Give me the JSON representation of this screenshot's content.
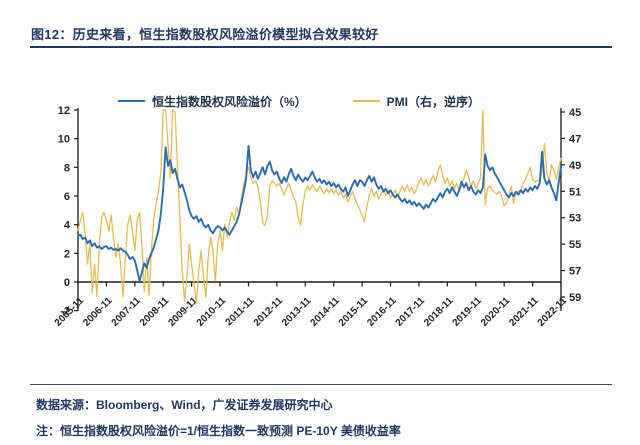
{
  "figure": {
    "title": "图12：历史来看，恒生指数股权风险溢价模型拟合效果较好",
    "source_line": "数据来源：Bloomberg、Wind，广发证券发展研究中心",
    "note_line": "注：恒生指数股权风险溢价=1/恒生指数一致预测 PE-10Y 美债收益率"
  },
  "colors": {
    "accent_navy": "#1f3864",
    "erp_blue": "#2b6cab",
    "pmi_yellow": "#e2bd56",
    "axis": "#1a1a1a",
    "tick_label": "#262626"
  },
  "chart_data": {
    "type": "line",
    "title": "",
    "x_start": "2005-11",
    "frequency": "monthly",
    "x_tick_labels": [
      "2005-11",
      "2006-11",
      "2007-11",
      "2008-11",
      "2009-11",
      "2010-11",
      "2011-11",
      "2012-11",
      "2013-11",
      "2014-11",
      "2015-11",
      "2016-11",
      "2017-11",
      "2018-11",
      "2019-11",
      "2020-11",
      "2021-11",
      "2022-11"
    ],
    "left_axis": {
      "min": -2,
      "max": 12,
      "ticks": [
        12,
        10,
        8,
        6,
        4,
        2,
        0,
        -2
      ]
    },
    "right_axis": {
      "min": 45,
      "max": 59,
      "ticks": [
        45,
        47,
        49,
        51,
        53,
        55,
        57,
        59
      ],
      "inverted": true
    },
    "grid": false,
    "legend_position": "top",
    "series": [
      {
        "name": "恒生指数股权风险溢价（%）",
        "axis": "left",
        "color_key": "erp_blue",
        "values": [
          3.2,
          3.3,
          3.0,
          3.1,
          2.7,
          2.9,
          2.5,
          2.7,
          2.4,
          2.5,
          2.3,
          2.45,
          2.5,
          2.3,
          2.4,
          2.25,
          2.3,
          2.2,
          2.35,
          2.2,
          2.1,
          1.9,
          1.6,
          1.75,
          1.5,
          0.8,
          0.05,
          0.7,
          1.3,
          1.0,
          1.6,
          2.0,
          2.4,
          3.0,
          3.6,
          4.8,
          6.5,
          9.4,
          8.1,
          8.5,
          7.6,
          7.9,
          7.2,
          6.6,
          6.8,
          6.3,
          5.7,
          5.0,
          4.6,
          4.4,
          4.6,
          4.2,
          4.4,
          4.0,
          3.8,
          4.0,
          3.6,
          3.4,
          3.7,
          3.9,
          3.8,
          3.6,
          3.8,
          3.5,
          3.3,
          3.6,
          3.9,
          4.2,
          4.7,
          5.5,
          6.3,
          7.2,
          9.5,
          7.8,
          7.3,
          7.7,
          7.2,
          7.6,
          8.0,
          7.5,
          8.1,
          8.4,
          7.8,
          7.5,
          7.7,
          7.2,
          6.9,
          7.3,
          7.0,
          7.5,
          7.9,
          7.4,
          7.1,
          7.5,
          7.2,
          7.0,
          7.3,
          7.1,
          7.4,
          7.7,
          7.3,
          7.0,
          7.2,
          6.9,
          7.1,
          6.8,
          7.0,
          6.7,
          6.9,
          6.6,
          6.8,
          6.5,
          6.3,
          6.6,
          6.0,
          6.4,
          6.8,
          7.1,
          6.7,
          7.1,
          7.0,
          6.7,
          7.1,
          7.4,
          7.0,
          7.3,
          6.8,
          6.5,
          6.7,
          6.3,
          6.5,
          6.2,
          6.4,
          6.1,
          5.9,
          6.1,
          5.8,
          5.6,
          5.8,
          5.5,
          5.7,
          5.4,
          5.6,
          5.3,
          5.5,
          5.3,
          5.1,
          5.4,
          5.2,
          5.5,
          5.8,
          5.6,
          5.9,
          6.2,
          5.9,
          6.3,
          6.5,
          6.2,
          6.6,
          6.3,
          6.0,
          6.4,
          7.0,
          6.6,
          6.9,
          6.4,
          6.7,
          6.3,
          6.1,
          6.4,
          6.2,
          6.6,
          8.9,
          8.1,
          7.8,
          8.0,
          7.6,
          7.3,
          7.0,
          6.7,
          6.4,
          6.1,
          5.9,
          6.2,
          6.0,
          6.3,
          6.1,
          6.4,
          6.2,
          6.5,
          6.3,
          6.6,
          6.4,
          6.7,
          6.5,
          6.9,
          9.1,
          7.2,
          6.8,
          7.1,
          6.6,
          6.2,
          5.7,
          6.9,
          8.1
        ]
      },
      {
        "name": "PMI（右，逆序）",
        "axis": "right",
        "color_key": "pmi_yellow",
        "values": [
          54.0,
          53.2,
          52.6,
          54.2,
          56.5,
          55.0,
          58.7,
          56.5,
          58.9,
          55.0,
          53.0,
          52.6,
          53.2,
          54.0,
          52.8,
          54.5,
          56.0,
          55.0,
          56.5,
          59.0,
          56.0,
          53.5,
          52.8,
          54.0,
          55.5,
          53.2,
          52.6,
          55.0,
          58.6,
          56.0,
          58.9,
          55.5,
          53.0,
          52.0,
          51.0,
          49.5,
          40.0,
          39.5,
          47.5,
          50.0,
          43.5,
          45.0,
          49.0,
          53.0,
          57.0,
          59.3,
          57.5,
          55.0,
          56.5,
          58.0,
          59.5,
          57.0,
          55.5,
          57.5,
          59.0,
          56.0,
          54.5,
          55.5,
          57.8,
          55.0,
          54.0,
          55.5,
          53.5,
          54.5,
          53.4,
          52.6,
          53.2,
          52.2,
          52.8,
          51.5,
          50.5,
          49.8,
          49.2,
          50.0,
          50.4,
          50.2,
          50.7,
          51.8,
          53.4,
          53.6,
          52.8,
          50.6,
          50.2,
          50.4,
          50.6,
          50.4,
          50.8,
          51.3,
          50.8,
          50.4,
          50.9,
          51.4,
          51.8,
          53.0,
          53.6,
          52.0,
          51.0,
          50.6,
          50.9,
          50.5,
          50.8,
          51.0,
          50.6,
          50.9,
          51.2,
          50.8,
          51.1,
          50.8,
          51.2,
          50.9,
          51.3,
          51.0,
          51.5,
          51.2,
          51.8,
          51.4,
          51.0,
          51.6,
          52.0,
          52.4,
          52.8,
          53.3,
          52.2,
          51.3,
          50.8,
          51.4,
          51.0,
          51.6,
          51.2,
          50.8,
          51.3,
          51.0,
          51.5,
          51.2,
          50.9,
          51.4,
          51.0,
          50.6,
          51.0,
          50.5,
          51.0,
          50.7,
          51.2,
          50.8,
          50.3,
          50.0,
          50.5,
          50.1,
          50.6,
          50.2,
          49.8,
          50.3,
          49.5,
          49.0,
          49.8,
          50.4,
          50.0,
          50.6,
          50.2,
          50.8,
          50.4,
          51.0,
          50.5,
          50.0,
          49.4,
          50.0,
          50.6,
          50.2,
          50.8,
          50.4,
          50.0,
          35.7,
          52.0,
          50.8,
          50.6,
          50.9,
          51.1,
          51.2,
          51.0,
          51.4,
          52.1,
          51.9,
          51.3,
          50.6,
          51.9,
          51.1,
          51.0,
          50.9,
          50.4,
          50.1,
          49.6,
          49.2,
          50.1,
          50.3,
          50.2,
          50.2,
          49.5,
          47.4,
          49.6,
          50.2,
          49.0,
          49.4,
          50.1,
          49.2,
          48.5
        ]
      }
    ]
  }
}
